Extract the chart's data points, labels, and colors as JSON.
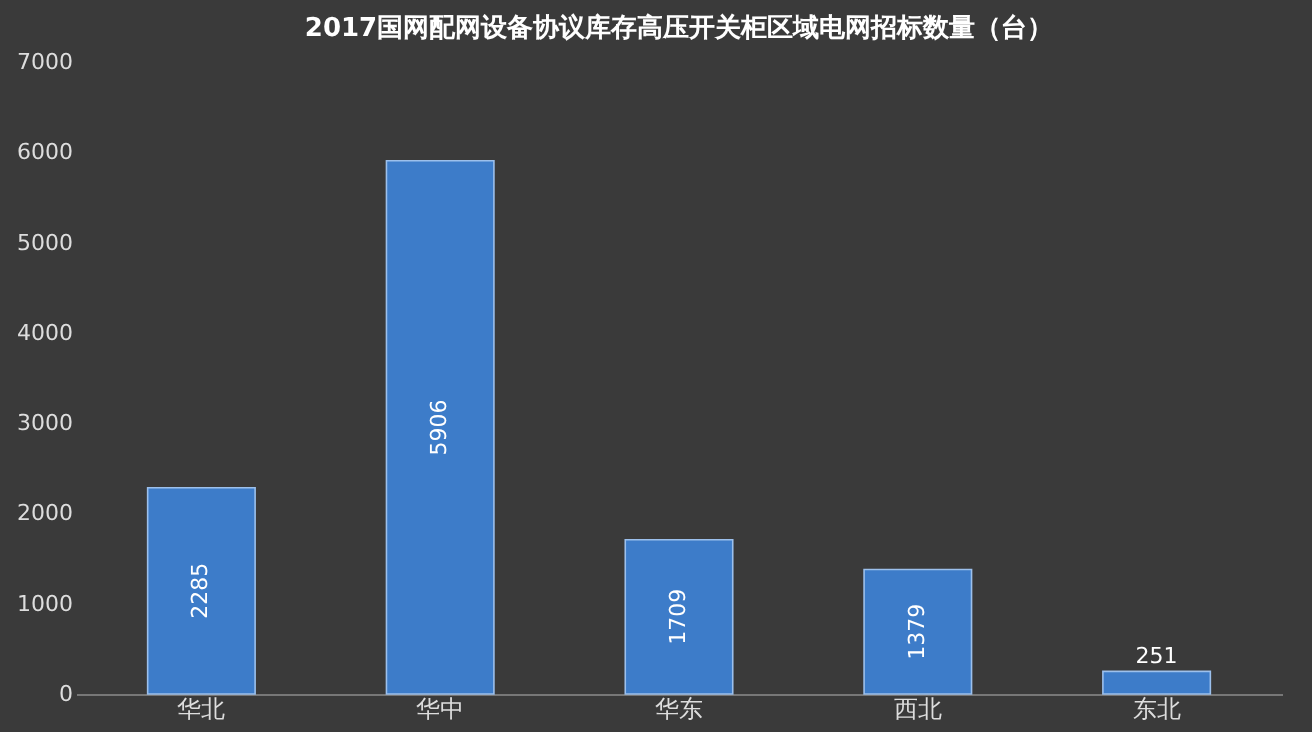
{
  "chart_data": {
    "type": "bar",
    "title": "2017国网配网设备协议库存高压开关柜区域电网招标数量（台）",
    "categories": [
      "华北",
      "华中",
      "华东",
      "西北",
      "东北"
    ],
    "values": [
      2285,
      5906,
      1709,
      1379,
      251
    ],
    "color": "#3d7cc9",
    "ylim": [
      0,
      7000
    ],
    "yticks": [
      0,
      1000,
      2000,
      3000,
      4000,
      5000,
      6000,
      7000
    ],
    "grid": false,
    "data_labels": true
  }
}
